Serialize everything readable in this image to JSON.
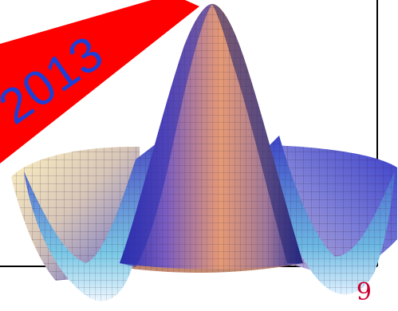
{
  "banner": {
    "text": "2013",
    "background_color": "#ff0000",
    "text_color": "#1c3fd8"
  },
  "plot": {
    "description_icon": "3d-surface-plot-icon",
    "colors": {
      "frame": "#000000",
      "surface_warm": "#d48a6a",
      "surface_cool": "#3b3fc9",
      "surface_highlight": "#fff3c2",
      "mesh": "#2a1a3a"
    }
  },
  "footer": {
    "page_number": "9",
    "page_number_color": "#cc0033"
  }
}
